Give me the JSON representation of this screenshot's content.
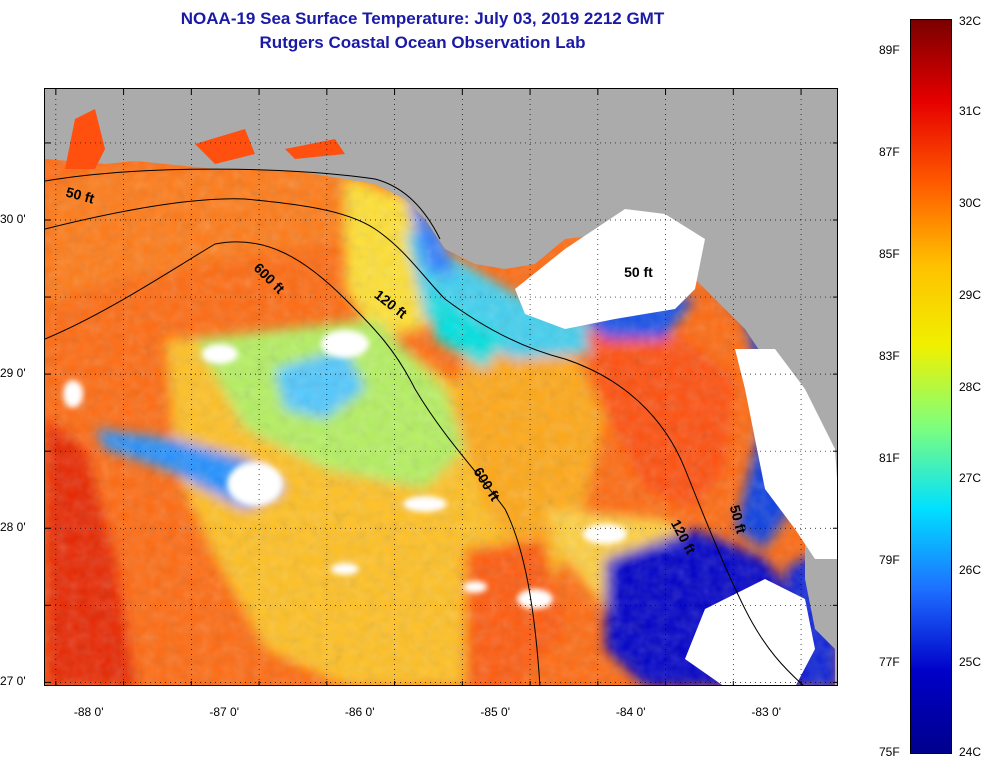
{
  "title": {
    "line1": "NOAA-19 Sea Surface Temperature:  July 03, 2019 2212 GMT",
    "line2": "Rutgers Coastal Ocean Observation Lab"
  },
  "map": {
    "lon_range": [
      -88.33,
      -82.47
    ],
    "lat_range": [
      26.97,
      30.85
    ],
    "x_ticks": [
      {
        "value": -88,
        "label": "-88 0'"
      },
      {
        "value": -87,
        "label": "-87 0'"
      },
      {
        "value": -86,
        "label": "-86 0'"
      },
      {
        "value": -85,
        "label": "-85 0'"
      },
      {
        "value": -84,
        "label": "-84 0'"
      },
      {
        "value": -83,
        "label": "-83 0'"
      }
    ],
    "y_ticks": [
      {
        "value": 30,
        "label": "30 0'"
      },
      {
        "value": 29,
        "label": "29 0'"
      },
      {
        "value": 28,
        "label": "28 0'"
      },
      {
        "value": 27,
        "label": "27 0'"
      }
    ],
    "grid": "dotted",
    "land_color": "#ababab",
    "cloud_color": "#ffffff",
    "contour_labels": [
      {
        "text": "50 ft",
        "lon": -88.08,
        "lat": 30.13,
        "angle": 15
      },
      {
        "text": "600 ft",
        "lon": -86.7,
        "lat": 29.6,
        "angle": 45
      },
      {
        "text": "120 ft",
        "lon": -85.8,
        "lat": 29.43,
        "angle": 38
      },
      {
        "text": "600 ft",
        "lon": -85.1,
        "lat": 28.27,
        "angle": 58
      },
      {
        "text": "50 ft",
        "lon": -83.95,
        "lat": 29.63,
        "angle": 0
      },
      {
        "text": "120 ft",
        "lon": -83.65,
        "lat": 27.93,
        "angle": 62
      },
      {
        "text": "50 ft",
        "lon": -83.25,
        "lat": 28.05,
        "angle": 75
      }
    ]
  },
  "colorbar": {
    "celsius": [
      "32C",
      "31C",
      "30C",
      "29C",
      "28C",
      "27C",
      "26C",
      "25C",
      "24C"
    ],
    "fahrenheit": [
      {
        "label": "89F",
        "value": 89
      },
      {
        "label": "87F",
        "value": 87
      },
      {
        "label": "85F",
        "value": 85
      },
      {
        "label": "83F",
        "value": 83
      },
      {
        "label": "81F",
        "value": 81
      },
      {
        "label": "79F",
        "value": 79
      },
      {
        "label": "77F",
        "value": 77
      },
      {
        "label": "75F",
        "value": 75
      }
    ],
    "range_c": [
      24,
      32
    ],
    "colors": [
      "#7a0000",
      "#e60000",
      "#ff5a00",
      "#ffc000",
      "#f0f000",
      "#7dff7d",
      "#00e0ff",
      "#1e6eff",
      "#0000c8",
      "#00008c"
    ]
  }
}
